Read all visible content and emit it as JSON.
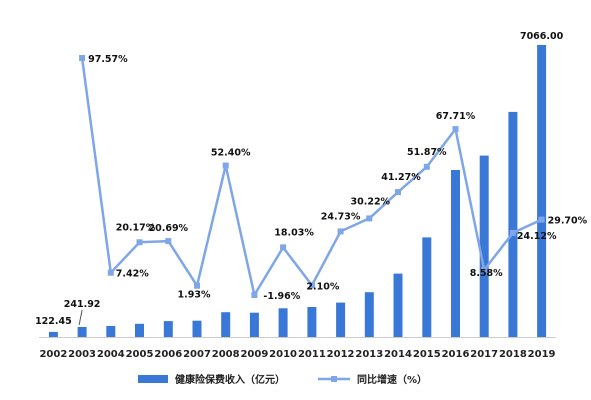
{
  "chart_data": {
    "type": "bar",
    "title": "",
    "xlabel": "",
    "ylabel": "",
    "grid": false,
    "legend_position": "bottom",
    "categories": [
      "2002",
      "2003",
      "2004",
      "2005",
      "2006",
      "2007",
      "2008",
      "2009",
      "2010",
      "2011",
      "2012",
      "2013",
      "2014",
      "2015",
      "2016",
      "2017",
      "2018",
      "2019"
    ],
    "series": [
      {
        "name": "健康险保费收入（亿元）",
        "type": "bar",
        "axis": "left",
        "color": "#3a78d8",
        "values": [
          122.45,
          241.92,
          265.9,
          319.5,
          385.6,
          393.3,
          599.3,
          587.8,
          694.8,
          725.7,
          831.7,
          1083.0,
          1534.0,
          2410.0,
          4042.0,
          4389.0,
          5448.0,
          7066.0
        ],
        "labels": [
          "122.45",
          "241.92",
          "",
          "",
          "",
          "",
          "",
          "",
          "",
          "",
          "",
          "",
          "",
          "",
          "",
          "",
          "",
          "7066.00"
        ]
      },
      {
        "name": "同比增速（%）",
        "type": "line",
        "axis": "right",
        "color": "#7ea6e8",
        "values": [
          null,
          97.57,
          7.42,
          20.17,
          20.69,
          1.93,
          52.4,
          -1.96,
          18.03,
          2.1,
          24.73,
          30.22,
          41.27,
          51.87,
          67.71,
          8.58,
          24.12,
          29.7
        ],
        "labels": [
          "",
          "97.57%",
          "7.42%",
          "20.17%",
          "20.69%",
          "1.93%",
          "52.40%",
          "-1.96%",
          "18.03%",
          "2.10%",
          "24.73%",
          "30.22%",
          "41.27%",
          "51.87%",
          "67.71%",
          "8.58%",
          "24.12%",
          "29.70%"
        ]
      }
    ],
    "ylim_left": [
      0,
      7066
    ],
    "ylim_right": [
      -5,
      100
    ]
  },
  "legend": {
    "bar_label": "健康险保费收入（亿元）",
    "line_label": "同比增速（%）"
  }
}
